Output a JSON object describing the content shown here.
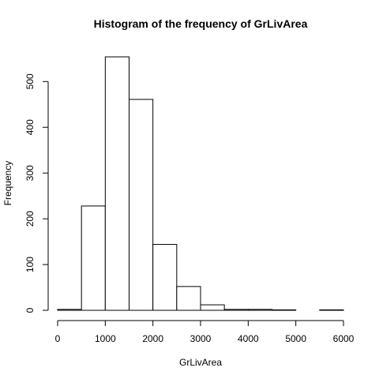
{
  "chart_data": {
    "type": "bar",
    "title": "Histogram of the frequency of GrLivArea",
    "xlabel": "GrLivArea",
    "ylabel": "Frequency",
    "bins": [
      {
        "start": 0,
        "end": 500,
        "value": 2
      },
      {
        "start": 500,
        "end": 1000,
        "value": 228
      },
      {
        "start": 1000,
        "end": 1500,
        "value": 554
      },
      {
        "start": 1500,
        "end": 2000,
        "value": 461
      },
      {
        "start": 2000,
        "end": 2500,
        "value": 144
      },
      {
        "start": 2500,
        "end": 3000,
        "value": 52
      },
      {
        "start": 3000,
        "end": 3500,
        "value": 12
      },
      {
        "start": 3500,
        "end": 4000,
        "value": 2
      },
      {
        "start": 4000,
        "end": 4500,
        "value": 2
      },
      {
        "start": 4500,
        "end": 5000,
        "value": 1
      },
      {
        "start": 5000,
        "end": 5500,
        "value": 0
      },
      {
        "start": 5500,
        "end": 6000,
        "value": 1
      }
    ],
    "xlim": [
      0,
      6000
    ],
    "ylim": [
      0,
      554
    ],
    "x_ticks": [
      "0",
      "1000",
      "2000",
      "3000",
      "4000",
      "5000",
      "6000"
    ],
    "y_ticks": [
      "0",
      "100",
      "200",
      "300",
      "400",
      "500"
    ],
    "grid": false,
    "bar_fill": "#ffffff",
    "bar_stroke": "#000000"
  }
}
